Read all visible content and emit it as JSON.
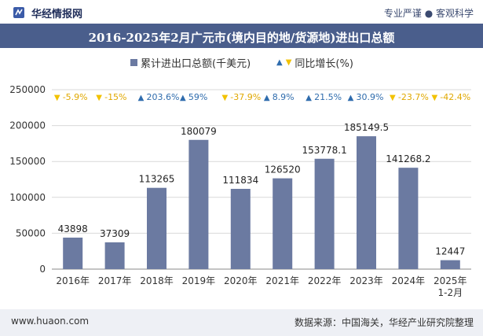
{
  "header": {
    "brand": "华经情报网",
    "slogan": "专业严谨 ● 客观科学"
  },
  "title": "2016-2025年2月广元市(境内目的地/货源地)进出口总额",
  "legend": {
    "bar_label": "累计进出口总额(千美元)",
    "line_label": "同比增长(%)"
  },
  "footer": {
    "website": "www.huaon.com",
    "source": "数据来源：中国海关，华经产业研究院整理"
  },
  "colors": {
    "bar": "#6b7aa1",
    "up": "#2f6cad",
    "down": "#f2c200",
    "title_bg": "#4a5e8c"
  },
  "chart_data": {
    "type": "bar",
    "categories": [
      "2016年",
      "2017年",
      "2018年",
      "2019年",
      "2020年",
      "2021年",
      "2022年",
      "2023年",
      "2024年",
      "2025年\n1-2月"
    ],
    "series": [
      {
        "name": "累计进出口总额(千美元)",
        "values": [
          43898,
          37309,
          113265,
          180079,
          111834,
          126520,
          153778.1,
          185149.5,
          141268.2,
          12447
        ],
        "labels": [
          "43898",
          "37309",
          "113265",
          "180079",
          "111834",
          "126520",
          "153778.1",
          "185149.5",
          "141268.2",
          "12447"
        ]
      },
      {
        "name": "同比增长(%)",
        "values": [
          -5.9,
          -15,
          203.6,
          59,
          -37.9,
          8.9,
          21.5,
          30.9,
          -23.7,
          -42.4
        ],
        "labels": [
          "-5.9%",
          "-15%",
          "203.6%",
          "59%",
          "-37.9%",
          "8.9%",
          "21.5%",
          "30.9%",
          "-23.7%",
          "-42.4%"
        ]
      }
    ],
    "ylim": [
      0,
      250000
    ],
    "yticks": [
      0,
      50000,
      100000,
      150000,
      200000,
      250000
    ],
    "ytick_labels": [
      "0",
      "50000",
      "100000",
      "150000",
      "200000",
      "250000"
    ],
    "grid": true,
    "legend_position": "top"
  }
}
